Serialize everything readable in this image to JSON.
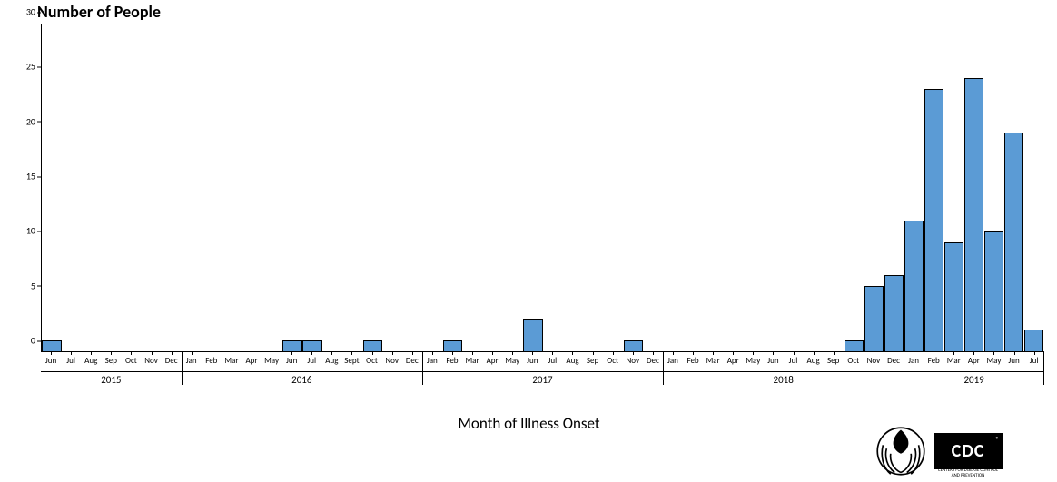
{
  "chart": {
    "type": "bar",
    "y_title": "Number of People",
    "x_title": "Month of Illness Onset",
    "title_fontsize": 18,
    "label_fontsize": 11,
    "background_color": "#ffffff",
    "axis_color": "#000000",
    "bar_color": "#5b9bd5",
    "bar_border": "#000000",
    "ylim": [
      0,
      30
    ],
    "ytick_step": 5,
    "yticks": [
      0,
      5,
      10,
      15,
      20,
      25,
      30
    ],
    "bar_width": 0.96,
    "months": [
      {
        "y": 2015,
        "m": "Jun",
        "v": 1
      },
      {
        "y": 2015,
        "m": "Jul",
        "v": 0
      },
      {
        "y": 2015,
        "m": "Aug",
        "v": 0
      },
      {
        "y": 2015,
        "m": "Sep",
        "v": 0
      },
      {
        "y": 2015,
        "m": "Oct",
        "v": 0
      },
      {
        "y": 2015,
        "m": "Nov",
        "v": 0
      },
      {
        "y": 2015,
        "m": "Dec",
        "v": 0
      },
      {
        "y": 2016,
        "m": "Jan",
        "v": 0
      },
      {
        "y": 2016,
        "m": "Feb",
        "v": 0
      },
      {
        "y": 2016,
        "m": "Mar",
        "v": 0
      },
      {
        "y": 2016,
        "m": "Apr",
        "v": 0
      },
      {
        "y": 2016,
        "m": "May",
        "v": 0
      },
      {
        "y": 2016,
        "m": "Jun",
        "v": 1
      },
      {
        "y": 2016,
        "m": "Jul",
        "v": 1
      },
      {
        "y": 2016,
        "m": "Aug",
        "v": 0
      },
      {
        "y": 2016,
        "m": "Sept",
        "v": 0
      },
      {
        "y": 2016,
        "m": "Oct",
        "v": 1
      },
      {
        "y": 2016,
        "m": "Nov",
        "v": 0
      },
      {
        "y": 2016,
        "m": "Dec",
        "v": 0
      },
      {
        "y": 2017,
        "m": "Jan",
        "v": 0
      },
      {
        "y": 2017,
        "m": "Feb",
        "v": 1
      },
      {
        "y": 2017,
        "m": "Mar",
        "v": 0
      },
      {
        "y": 2017,
        "m": "Apr",
        "v": 0
      },
      {
        "y": 2017,
        "m": "May",
        "v": 0
      },
      {
        "y": 2017,
        "m": "Jun",
        "v": 3
      },
      {
        "y": 2017,
        "m": "Jul",
        "v": 0
      },
      {
        "y": 2017,
        "m": "Aug",
        "v": 0
      },
      {
        "y": 2017,
        "m": "Sep",
        "v": 0
      },
      {
        "y": 2017,
        "m": "Oct",
        "v": 0
      },
      {
        "y": 2017,
        "m": "Nov",
        "v": 1
      },
      {
        "y": 2017,
        "m": "Dec",
        "v": 0
      },
      {
        "y": 2018,
        "m": "Jan",
        "v": 0
      },
      {
        "y": 2018,
        "m": "Feb",
        "v": 0
      },
      {
        "y": 2018,
        "m": "Mar",
        "v": 0
      },
      {
        "y": 2018,
        "m": "Apr",
        "v": 0
      },
      {
        "y": 2018,
        "m": "May",
        "v": 0
      },
      {
        "y": 2018,
        "m": "Jun",
        "v": 0
      },
      {
        "y": 2018,
        "m": "Jul",
        "v": 0
      },
      {
        "y": 2018,
        "m": "Aug",
        "v": 0
      },
      {
        "y": 2018,
        "m": "Sep",
        "v": 0
      },
      {
        "y": 2018,
        "m": "Oct",
        "v": 1
      },
      {
        "y": 2018,
        "m": "Nov",
        "v": 6
      },
      {
        "y": 2018,
        "m": "Dec",
        "v": 7
      },
      {
        "y": 2019,
        "m": "Jan",
        "v": 12
      },
      {
        "y": 2019,
        "m": "Feb",
        "v": 24
      },
      {
        "y": 2019,
        "m": "Mar",
        "v": 10
      },
      {
        "y": 2019,
        "m": "Apr",
        "v": 25
      },
      {
        "y": 2019,
        "m": "May",
        "v": 11
      },
      {
        "y": 2019,
        "m": "Jun",
        "v": 20
      },
      {
        "y": 2019,
        "m": "Jul",
        "v": 2
      }
    ],
    "years": [
      {
        "label": "2015",
        "span": 7
      },
      {
        "label": "2016",
        "span": 12
      },
      {
        "label": "2017",
        "span": 12
      },
      {
        "label": "2018",
        "span": 12
      },
      {
        "label": "2019",
        "span": 7
      }
    ]
  },
  "logos": {
    "hhs_alt": "HHS Logo",
    "cdc_text": "CDC",
    "cdc_sub": "CENTERS FOR DISEASE CONTROL AND PREVENTION"
  }
}
